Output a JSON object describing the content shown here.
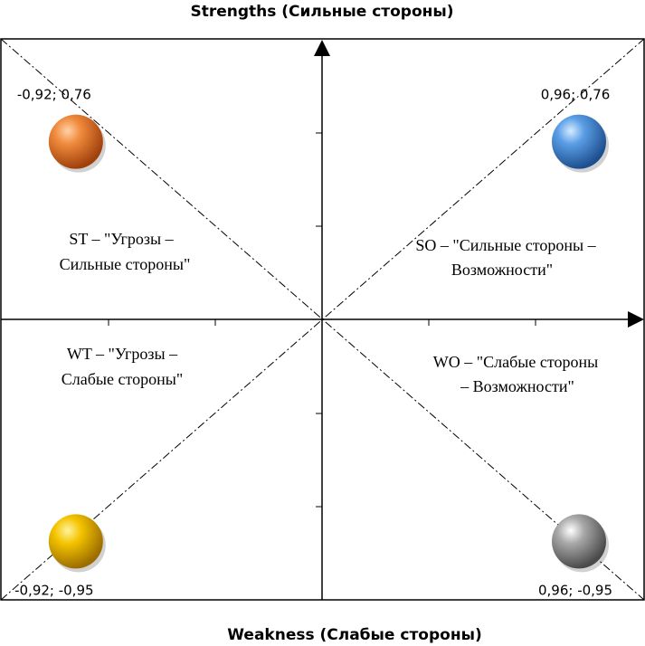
{
  "chart_data": {
    "type": "scatter",
    "title": "Strengths (Сильные стороны)",
    "bottom_label": "Weakness (Слабые стороны)",
    "xlim": [
      -1.2,
      1.2
    ],
    "ylim": [
      -1.2,
      1.2
    ],
    "grid": false,
    "diagonals": true,
    "points": [
      {
        "x": -0.92,
        "y": 0.76,
        "label": "-0,92; 0,76",
        "color": "#e87a2c"
      },
      {
        "x": 0.96,
        "y": 0.76,
        "label": "0,96; 0,76",
        "color": "#4a8fd8"
      },
      {
        "x": -0.92,
        "y": -0.95,
        "label": "-0,92; -0,95",
        "color": "#f2c200"
      },
      {
        "x": 0.96,
        "y": -0.95,
        "label": "0,96; -0,95",
        "color": "#9a9a9a"
      }
    ],
    "quadrants": [
      {
        "id": "st",
        "lines": [
          "ST – \"Угрозы –",
          "Сильные стороны\""
        ]
      },
      {
        "id": "so",
        "lines": [
          "SO – \"Сильные стороны –",
          "Возможности\""
        ]
      },
      {
        "id": "wt",
        "lines": [
          "WT – \"Угрозы –",
          "Слабые стороны\""
        ]
      },
      {
        "id": "wo",
        "lines": [
          "WO – \"Слабые стороны",
          "– Возможности\""
        ]
      }
    ]
  }
}
